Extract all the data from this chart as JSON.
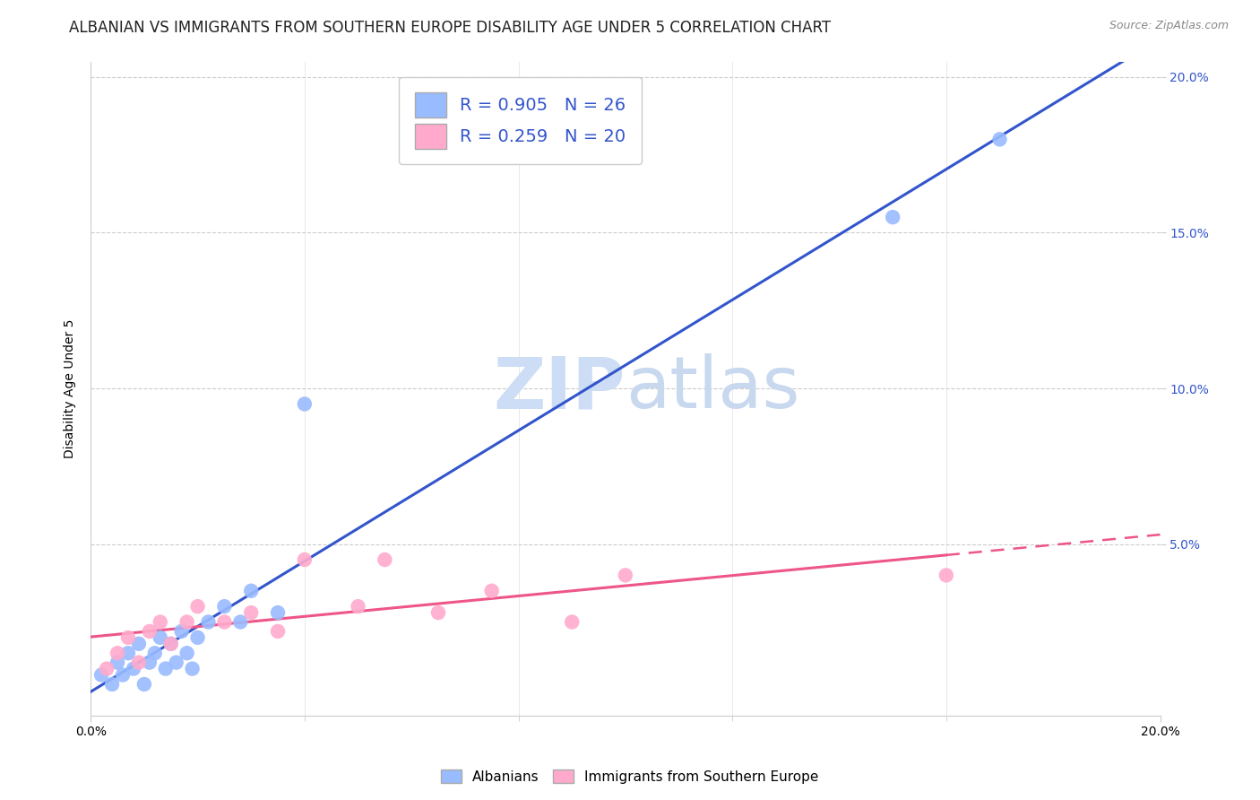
{
  "title": "ALBANIAN VS IMMIGRANTS FROM SOUTHERN EUROPE DISABILITY AGE UNDER 5 CORRELATION CHART",
  "source": "Source: ZipAtlas.com",
  "ylabel": "Disability Age Under 5",
  "xlim": [
    0.0,
    0.2
  ],
  "ylim": [
    -0.005,
    0.205
  ],
  "xticks": [
    0.0,
    0.2
  ],
  "xtick_labels": [
    "0.0%",
    "20.0%"
  ],
  "yticks": [
    0.05,
    0.1,
    0.15,
    0.2
  ],
  "ytick_labels_right": [
    "5.0%",
    "10.0%",
    "15.0%",
    "20.0%"
  ],
  "albanian_color": "#99bbff",
  "immigrant_color": "#ffaacc",
  "albanian_line_color": "#3355cc",
  "immigrant_line_color": "#ee5588",
  "background_color": "#ffffff",
  "watermark_zip": "ZIP",
  "watermark_atlas": "atlas",
  "watermark_color": "#ccddf5",
  "legend_R1": "R = 0.905",
  "legend_N1": "N = 26",
  "legend_R2": "R = 0.259",
  "legend_N2": "N = 20",
  "albanian_x": [
    0.002,
    0.004,
    0.005,
    0.006,
    0.007,
    0.008,
    0.009,
    0.01,
    0.011,
    0.012,
    0.013,
    0.014,
    0.015,
    0.016,
    0.017,
    0.018,
    0.019,
    0.02,
    0.022,
    0.025,
    0.028,
    0.03,
    0.035,
    0.04,
    0.15,
    0.17
  ],
  "albanian_y": [
    0.008,
    0.005,
    0.012,
    0.008,
    0.015,
    0.01,
    0.018,
    0.005,
    0.012,
    0.015,
    0.02,
    0.01,
    0.018,
    0.012,
    0.022,
    0.015,
    0.01,
    0.02,
    0.025,
    0.03,
    0.025,
    0.035,
    0.028,
    0.095,
    0.155,
    0.18
  ],
  "immigrant_x": [
    0.003,
    0.005,
    0.007,
    0.009,
    0.011,
    0.013,
    0.015,
    0.018,
    0.02,
    0.025,
    0.03,
    0.035,
    0.04,
    0.05,
    0.055,
    0.065,
    0.075,
    0.09,
    0.1,
    0.16
  ],
  "immigrant_y": [
    0.01,
    0.015,
    0.02,
    0.012,
    0.022,
    0.025,
    0.018,
    0.025,
    0.03,
    0.025,
    0.028,
    0.022,
    0.045,
    0.03,
    0.045,
    0.028,
    0.035,
    0.025,
    0.04,
    0.04
  ],
  "title_fontsize": 12,
  "axis_label_fontsize": 10,
  "tick_fontsize": 10,
  "legend_fontsize": 14
}
